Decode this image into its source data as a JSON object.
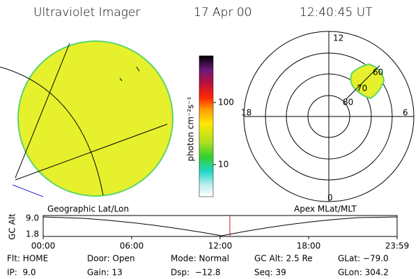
{
  "header": {
    "instrument": "Ultraviolet Imager",
    "date": "17 Apr 00",
    "time": "12:40:45 UT"
  },
  "colorbar": {
    "label": "photon cm⁻²s⁻¹",
    "ticks": [
      "100",
      "10"
    ]
  },
  "polar": {
    "mlt_labels": [
      "12",
      "18",
      "6",
      "0"
    ],
    "mlat_labels": [
      "80",
      "70",
      "60"
    ]
  },
  "altitude_plot": {
    "left_title": "Geographic Lat/Lon",
    "right_title": "Apex MLat/MLT",
    "y_label": "GC Alt",
    "y_ticks": [
      "9.0",
      "1.8"
    ],
    "x_ticks": [
      "00:00",
      "06:00",
      "12:00",
      "18:00",
      "23:59"
    ]
  },
  "status": {
    "rows": [
      [
        "Flt: HOME",
        "Door: Open",
        "Mode: Normal",
        "GC Alt: 2.5 Re",
        "GLat: −79.0"
      ],
      [
        "IP:  9.0",
        "Gain: 13",
        "Dsp:  −12.8",
        "Seq: 39",
        "GLon: 304.2"
      ]
    ]
  }
}
